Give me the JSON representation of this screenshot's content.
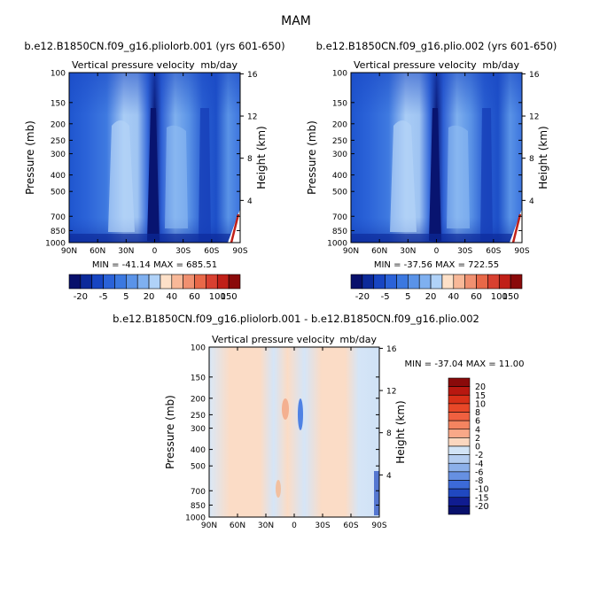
{
  "figure": {
    "title": "MAM"
  },
  "chart_data": [
    {
      "type": "heatmap",
      "title": "b.e12.B1850CN.f09_g16.pliolorb.001 (yrs 601-650)",
      "subtitle_left": "Vertical pressure velocity",
      "subtitle_right": "mb/day",
      "xlabel": "",
      "ylabel": "Pressure (mb)",
      "ylabel_right": "Height (km)",
      "x_ticks": [
        "90N",
        "60N",
        "30N",
        "0",
        "30S",
        "60S",
        "90S"
      ],
      "y_ticks": [
        "100",
        "150",
        "200",
        "250",
        "300",
        "400",
        "500",
        "700",
        "850",
        "1000"
      ],
      "y_right_ticks": [
        "16",
        "12",
        "8",
        "4"
      ],
      "stats": "MIN = -41.14   MAX = 685.51",
      "colorbar": {
        "orientation": "horizontal",
        "labels": [
          "-20",
          "-5",
          "5",
          "20",
          "40",
          "60",
          "100",
          "150"
        ]
      }
    },
    {
      "type": "heatmap",
      "title": "b.e12.B1850CN.f09_g16.plio.002 (yrs 601-650)",
      "subtitle_left": "Vertical pressure velocity",
      "subtitle_right": "mb/day",
      "xlabel": "",
      "ylabel": "Pressure (mb)",
      "ylabel_right": "Height (km)",
      "x_ticks": [
        "90N",
        "60N",
        "30N",
        "0",
        "30S",
        "60S",
        "90S"
      ],
      "y_ticks": [
        "100",
        "150",
        "200",
        "250",
        "300",
        "400",
        "500",
        "700",
        "850",
        "1000"
      ],
      "y_right_ticks": [
        "16",
        "12",
        "8",
        "4"
      ],
      "stats": "MIN = -37.56   MAX = 722.55",
      "colorbar": {
        "orientation": "horizontal",
        "labels": [
          "-20",
          "-5",
          "5",
          "20",
          "40",
          "60",
          "100",
          "150"
        ]
      }
    },
    {
      "type": "heatmap",
      "title": "b.e12.B1850CN.f09_g16.pliolorb.001 - b.e12.B1850CN.f09_g16.plio.002",
      "subtitle_left": "Vertical pressure velocity",
      "subtitle_right": "mb/day",
      "xlabel": "",
      "ylabel": "Pressure (mb)",
      "ylabel_right": "Height (km)",
      "x_ticks": [
        "90N",
        "60N",
        "30N",
        "0",
        "30S",
        "60S",
        "90S"
      ],
      "y_ticks": [
        "100",
        "150",
        "200",
        "250",
        "300",
        "400",
        "500",
        "700",
        "850",
        "1000"
      ],
      "y_right_ticks": [
        "16",
        "12",
        "8",
        "4"
      ],
      "stats": "MIN = -37.04   MAX =  11.00",
      "colorbar": {
        "orientation": "vertical",
        "labels": [
          "20",
          "15",
          "10",
          "8",
          "6",
          "4",
          "2",
          "0",
          "-2",
          "-4",
          "-6",
          "-8",
          "-10",
          "-15",
          "-20"
        ]
      }
    }
  ],
  "colors": {
    "abs_scale": [
      "#08106b",
      "#0c2a9a",
      "#1745c2",
      "#2a62d8",
      "#3b78e0",
      "#5a93e8",
      "#7fb0f0",
      "#b0d2f8",
      "#fde0c8",
      "#f8b898",
      "#f09070",
      "#e86848",
      "#d84030",
      "#c02018",
      "#8a0a0a"
    ],
    "diff_scale": [
      "#8a0a0a",
      "#b81810",
      "#d83018",
      "#e84828",
      "#f06040",
      "#f48460",
      "#f8a888",
      "#fbd7bf",
      "#d2e4f6",
      "#b4cdf0",
      "#8cb0ea",
      "#6690e2",
      "#3c6ad8",
      "#2048c0",
      "#101c90",
      "#08106b"
    ]
  }
}
